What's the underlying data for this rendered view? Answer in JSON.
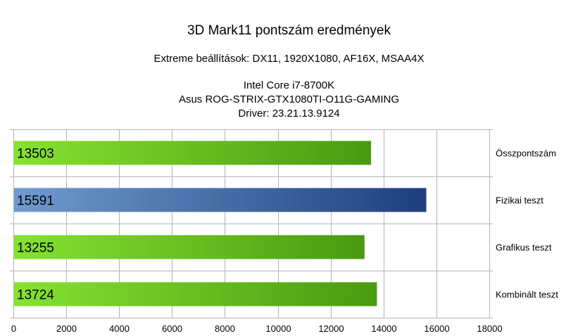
{
  "chart_data": {
    "type": "bar",
    "orientation": "horizontal",
    "title": "3D Mark11 pontszám eredmények",
    "subtitle_lines": [
      "Extreme beállítások: DX11, 1920X1080, AF16X, MSAA4X",
      "Intel Core i7-8700K",
      "Asus ROG-STRIX-GTX1080TI-O11G-GAMING",
      "Driver: 23.21.13.9124"
    ],
    "categories": [
      "Összpontszám",
      "Fizikai teszt",
      "Grafikus teszt",
      "Kombinált teszt"
    ],
    "values": [
      13503,
      15591,
      13255,
      13724
    ],
    "data_labels": [
      "13503",
      "15591",
      "13255",
      "13724"
    ],
    "bar_colors": [
      "#6cc42a",
      "#2f5a94",
      "#6cc42a",
      "#6cc42a"
    ],
    "xlim": [
      0,
      18000
    ],
    "xticks": [
      "0",
      "2000",
      "4000",
      "6000",
      "8000",
      "10000",
      "12000",
      "14000",
      "16000",
      "18000"
    ],
    "xlabel": "",
    "ylabel": "",
    "grid": true,
    "category_label_position": "right"
  }
}
